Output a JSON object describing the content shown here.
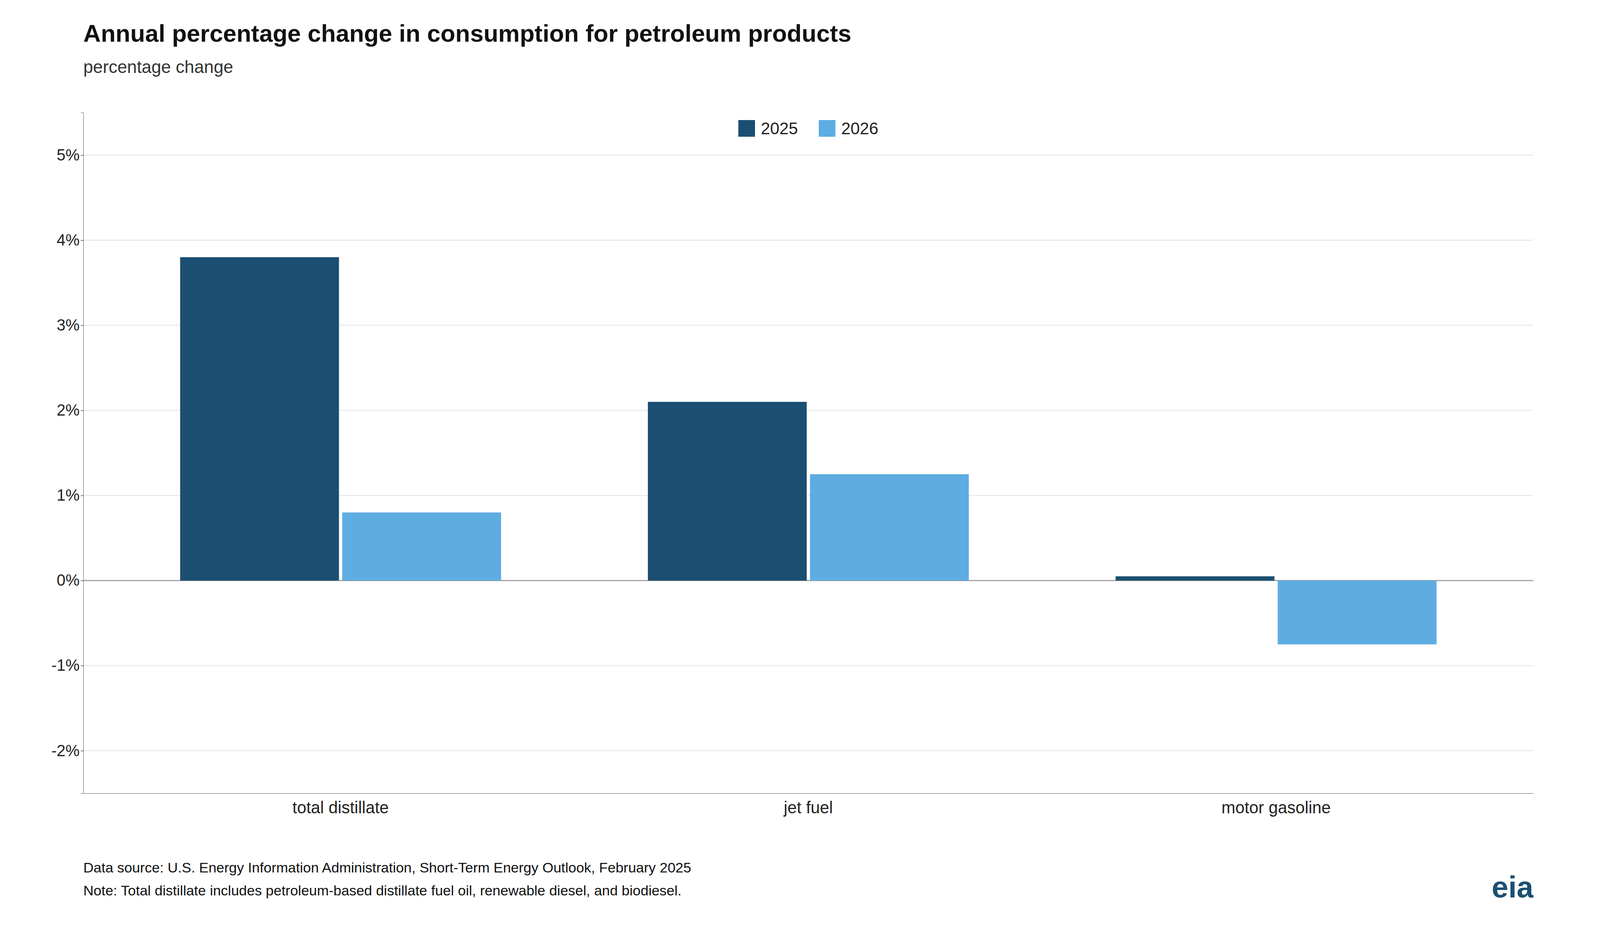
{
  "chart_data": {
    "type": "bar",
    "title": "Annual percentage change in consumption for petroleum products",
    "subtitle": "percentage change",
    "categories": [
      "total distillate",
      "jet fuel",
      "motor gasoline"
    ],
    "series": [
      {
        "name": "2025",
        "color": "#1b4f72",
        "values": [
          3.8,
          2.1,
          0.05
        ]
      },
      {
        "name": "2026",
        "color": "#5dade2",
        "values": [
          0.8,
          1.25,
          -0.75
        ]
      }
    ],
    "ylim": [
      -2.5,
      5.5
    ],
    "yticks": [
      {
        "value": -2,
        "label": "-2%"
      },
      {
        "value": -1,
        "label": "-1%"
      },
      {
        "value": 0,
        "label": "0%"
      },
      {
        "value": 1,
        "label": "1%"
      },
      {
        "value": 2,
        "label": "2%"
      },
      {
        "value": 3,
        "label": "3%"
      },
      {
        "value": 4,
        "label": "4%"
      },
      {
        "value": 5,
        "label": "5%"
      }
    ],
    "grid": true,
    "legend": "top",
    "annotations": [
      "Data source: U.S. Energy Information Administration, Short-Term Energy Outlook, February 2025",
      "Note: Total distillate includes petroleum-based distillate fuel oil, renewable diesel, and biodiesel.",
      "eia"
    ]
  }
}
